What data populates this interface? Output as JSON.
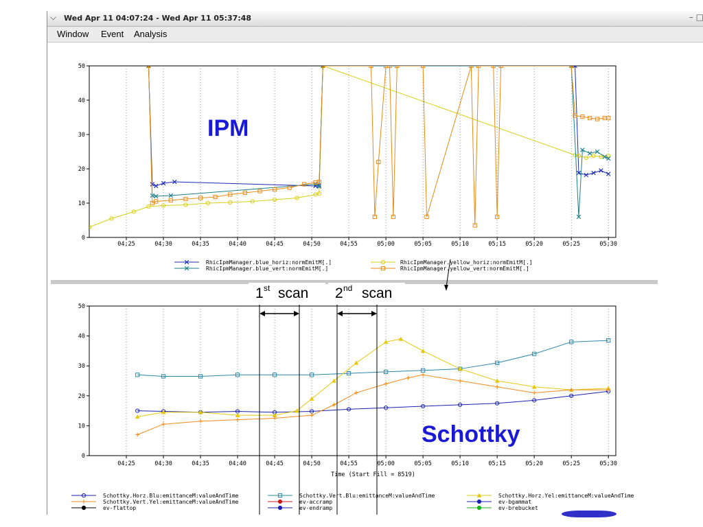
{
  "window": {
    "title": "Wed Apr 11 04:07:24 - Wed Apr 11 05:37:48",
    "menu": [
      "Window",
      "Event",
      "Analysis"
    ],
    "icons": {
      "window_menu": "chevron-down-icon",
      "minimize": "minimize-icon"
    }
  },
  "annotations": {
    "ipm_label": "IPM",
    "schottky_label": "Schottky",
    "scan1": {
      "num": "1",
      "sup": "st",
      "word": "scan"
    },
    "scan2": {
      "num": "2",
      "sup": "nd",
      "word": "scan"
    }
  },
  "chart_data": [
    {
      "type": "line",
      "title": "",
      "xlabel": "",
      "ylabel": "",
      "x_unit": "time (hh:mm)",
      "xlim": [
        "04:20",
        "05:31"
      ],
      "ylim": [
        0,
        50
      ],
      "x_ticks": [
        "04:25",
        "04:30",
        "04:35",
        "04:40",
        "04:45",
        "04:50",
        "04:55",
        "05:00",
        "05:05",
        "05:10",
        "05:15",
        "05:20",
        "05:25",
        "05:30"
      ],
      "y_ticks": [
        "0",
        "10",
        "20",
        "30",
        "40",
        "50"
      ],
      "grid": "vertical dotted",
      "legend_position": "bottom",
      "series": [
        {
          "name": "RhicIpmManager.blue_horiz:normEmitM[.]",
          "color": "#1a2bb8",
          "marker": "x",
          "x": [
            "04:28:00",
            "04:28:30",
            "04:29:00",
            "04:30:00",
            "04:31:30",
            "04:50:30",
            "04:51:00",
            "04:51:30",
            "05:25:30",
            "05:26:00",
            "05:27:00",
            "05:28:00",
            "05:29:00",
            "05:30:00"
          ],
          "y": [
            50,
            15.5,
            15,
            15.8,
            16.2,
            15,
            15.2,
            50,
            50,
            18.8,
            18.2,
            18.8,
            19.5,
            18.5
          ]
        },
        {
          "name": "RhicIpmManager.yellow_horiz:normEmitM[.]",
          "color": "#d8cf16",
          "marker": "o",
          "x": [
            "04:20:00",
            "04:23:00",
            "04:26:00",
            "04:28:00",
            "04:30:00",
            "04:33:00",
            "04:36:00",
            "04:39:00",
            "04:42:00",
            "04:45:00",
            "04:48:00",
            "04:50:30",
            "04:51:00",
            "04:51:30",
            "05:25:30",
            "05:26:00",
            "05:27:00",
            "05:28:00",
            "05:29:00",
            "05:30:00"
          ],
          "y": [
            3,
            5.5,
            7.5,
            9,
            9.3,
            9.5,
            10,
            10.2,
            10.5,
            11,
            11.5,
            12.5,
            12.8,
            50,
            24,
            23.8,
            23.2,
            23.8,
            23.5,
            23.8
          ]
        },
        {
          "name": "RhicIpmManager.blue_vert:normEmitM[.]",
          "color": "#1b7f8a",
          "marker": "x",
          "x": [
            "04:28:00",
            "04:28:30",
            "04:29:00",
            "04:31:00",
            "04:50:30",
            "04:51:00",
            "04:51:30",
            "05:25:00",
            "05:26:00",
            "05:26:30",
            "05:27:30",
            "05:28:30",
            "05:29:30",
            "05:30:00"
          ],
          "y": [
            50,
            12.2,
            12,
            12.2,
            15.5,
            14.8,
            50,
            50,
            6,
            25.5,
            24.5,
            25,
            23.5,
            23
          ],
          "x_extra": []
        },
        {
          "name": "RhicIpmManager.yellow_vert:normEmitM[.]",
          "color": "#e88a12",
          "marker": "square",
          "x": [
            "04:28:00",
            "04:28:30",
            "04:29:00",
            "04:31:00",
            "04:33:00",
            "04:35:00",
            "04:37:00",
            "04:39:00",
            "04:41:00",
            "04:43:00",
            "04:45:00",
            "04:47:00",
            "04:49:00",
            "04:50:30",
            "04:51:00",
            "04:51:30",
            "04:58:00",
            "04:58:30",
            "04:59:00",
            "05:00:00",
            "05:00:30",
            "05:01:00",
            "05:01:30",
            "05:05:00",
            "05:05:30",
            "05:11:30",
            "05:12:00",
            "05:12:30",
            "05:14:30",
            "05:15:00",
            "05:15:30",
            "05:25:00",
            "05:25:30",
            "05:26:30",
            "05:27:30",
            "05:28:30",
            "05:29:30",
            "05:30:00"
          ],
          "y": [
            50,
            10,
            10.5,
            10.8,
            11.2,
            11.5,
            11.8,
            12.5,
            13,
            13.5,
            14,
            14.5,
            15.5,
            16,
            16.2,
            50,
            50,
            6,
            22,
            50,
            50,
            6,
            50,
            50,
            6,
            50,
            3.5,
            50,
            50,
            6,
            50,
            50,
            35.5,
            35.2,
            34.8,
            34.5,
            34.8,
            34.8
          ]
        }
      ]
    },
    {
      "type": "line",
      "title": "",
      "xlabel": "Time (Start Fill = 8519)",
      "ylabel": "",
      "xlim": [
        "04:20",
        "05:31"
      ],
      "ylim": [
        0,
        50
      ],
      "x_ticks": [
        "04:25",
        "04:30",
        "04:35",
        "04:40",
        "04:45",
        "04:50",
        "04:55",
        "05:00",
        "05:05",
        "05:10",
        "05:15",
        "05:20",
        "05:25",
        "05:30"
      ],
      "y_ticks": [
        "0",
        "10",
        "20",
        "30",
        "40",
        "50"
      ],
      "grid": "vertical dotted",
      "legend_position": "bottom",
      "series": [
        {
          "name": "Schottky.Horz.Blu:emittanceM:valueAndTime",
          "color": "#1a22b0",
          "marker": "o",
          "x": [
            "04:26:30",
            "04:30:00",
            "04:35:00",
            "04:40:00",
            "04:45:00",
            "04:50:00",
            "04:55:00",
            "05:00:00",
            "05:05:00",
            "05:10:00",
            "05:15:00",
            "05:20:00",
            "05:25:00",
            "05:30:00"
          ],
          "y": [
            15,
            14.8,
            14.5,
            14.8,
            14.5,
            14.8,
            15.5,
            16,
            16.5,
            17,
            17.5,
            18.5,
            20,
            21.5
          ]
        },
        {
          "name": "Schottky.Vert.Blu:emittanceM:valueAndTime",
          "color": "#2a88a8",
          "marker": "square",
          "x": [
            "04:26:30",
            "04:30:00",
            "04:35:00",
            "04:40:00",
            "04:45:00",
            "04:50:00",
            "04:55:00",
            "05:00:00",
            "05:05:00",
            "05:10:00",
            "05:15:00",
            "05:20:00",
            "05:25:00",
            "05:30:00"
          ],
          "y": [
            27,
            26.5,
            26.5,
            27,
            27,
            27,
            27.5,
            28,
            28.5,
            29,
            31,
            34,
            38,
            38.5
          ]
        },
        {
          "name": "Schottky.Horz.Yel:emittanceM:valueAndTime",
          "color": "#e6c811",
          "marker": "triangle",
          "x": [
            "04:26:30",
            "04:30:00",
            "04:35:00",
            "04:40:00",
            "04:45:00",
            "04:48:00",
            "04:50:00",
            "04:53:00",
            "04:56:00",
            "05:00:00",
            "05:02:00",
            "05:05:00",
            "05:10:00",
            "05:15:00",
            "05:20:00",
            "05:25:00",
            "05:30:00"
          ],
          "y": [
            13,
            14.5,
            14.5,
            13.5,
            13.5,
            15,
            19,
            25,
            31,
            38,
            39,
            35,
            29,
            25,
            23,
            22,
            22.5
          ]
        },
        {
          "name": "Schottky.Vert.Yel:emittanceM:valueAndTime",
          "color": "#f08a1a",
          "marker": "+",
          "x": [
            "04:26:30",
            "04:30:00",
            "04:35:00",
            "04:40:00",
            "04:45:00",
            "04:50:00",
            "04:53:00",
            "04:56:00",
            "05:00:00",
            "05:03:00",
            "05:05:00",
            "05:10:00",
            "05:15:00",
            "05:20:00",
            "05:25:00",
            "05:30:00"
          ],
          "y": [
            7,
            10.5,
            11.5,
            12,
            12.5,
            13.5,
            17,
            21,
            24,
            26,
            27,
            25,
            23,
            21,
            22,
            22
          ]
        },
        {
          "name": "ev-accramp",
          "color": "#cc1a1a",
          "marker": "dot",
          "x": [],
          "y": []
        },
        {
          "name": "ev-bgammat",
          "color": "#1a22b0",
          "marker": "dot",
          "x": [],
          "y": []
        },
        {
          "name": "ev-flattop",
          "color": "#000000",
          "marker": "dot",
          "x": [],
          "y": []
        },
        {
          "name": "ev-endramp",
          "color": "#1a22b0",
          "marker": "dot",
          "x": [],
          "y": []
        },
        {
          "name": "ev-brebucket",
          "color": "#1ab31a",
          "marker": "dot",
          "x": [],
          "y": []
        }
      ]
    }
  ]
}
